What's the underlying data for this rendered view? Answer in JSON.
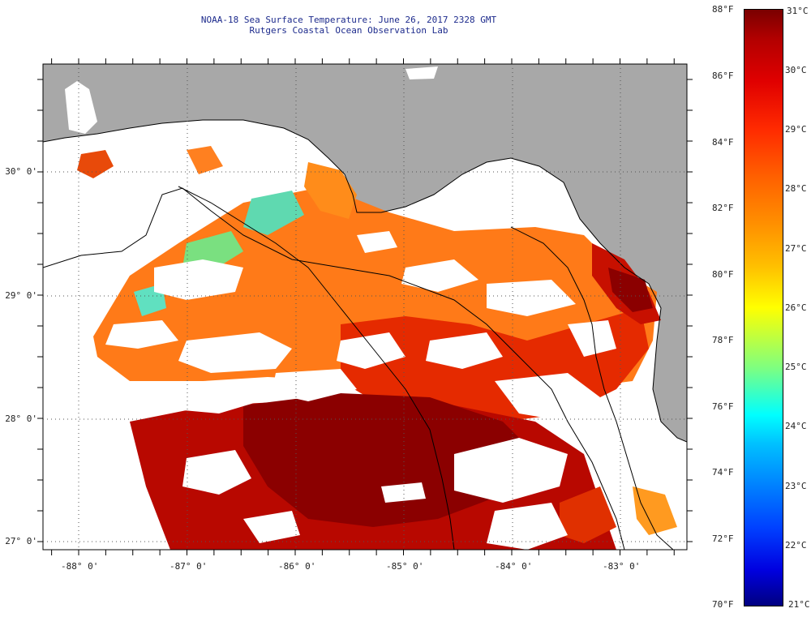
{
  "title": {
    "line1": "NOAA-18 Sea Surface Temperature:  June 26, 2017 2328 GMT",
    "line2": "Rutgers Coastal Ocean Observation Lab"
  },
  "map": {
    "longitude_labels": [
      "-88° 0'",
      "-87° 0'",
      "-86° 0'",
      "-85° 0'",
      "-84° 0'",
      "-83° 0'"
    ],
    "latitude_labels": [
      "30° 0'",
      "29° 0'",
      "28° 0'",
      "27° 0'"
    ],
    "colors": {
      "land": "#a8a8a8",
      "no_data": "#ffffff",
      "hot": "#8b0000",
      "warm": "#d81a00",
      "mid": "#ff5a10",
      "cool": "#ff9a20",
      "cold_patch": "#60e0b0"
    }
  },
  "colorbar": {
    "fahrenheit_labels": [
      "88°F",
      "86°F",
      "84°F",
      "82°F",
      "80°F",
      "78°F",
      "76°F",
      "74°F",
      "72°F",
      "70°F"
    ],
    "celsius_labels": [
      "31°C",
      "30°C",
      "29°C",
      "28°C",
      "27°C",
      "26°C",
      "25°C",
      "24°C",
      "23°C",
      "22°C",
      "21°C"
    ],
    "range_f": [
      70,
      88
    ],
    "range_c": [
      21,
      31
    ]
  }
}
